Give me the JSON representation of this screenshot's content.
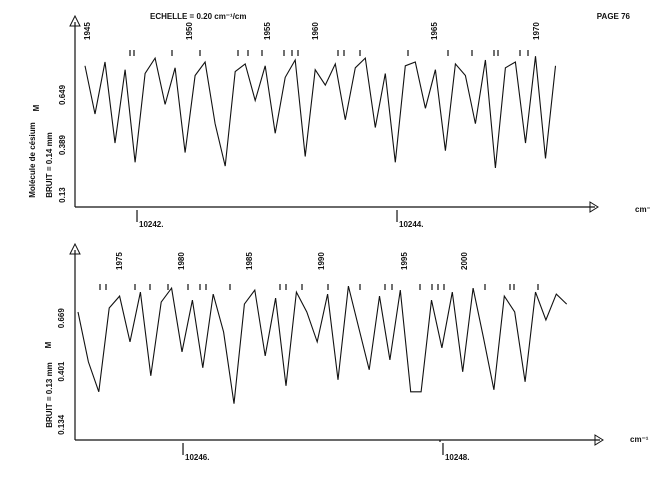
{
  "page": "PAGE 76",
  "chart_data": [
    {
      "type": "line",
      "title": "ECHELLE = 0.20 cm⁻¹/cm",
      "x_unit": "cm⁻¹",
      "molecule_label": "Molécule de césium",
      "noise_label": "BRUIT = 0.14 mm",
      "symbol": "M",
      "color": "#111111",
      "xlim": [
        10241.523,
        10245.523
      ],
      "xticks": [
        {
          "value": 10242,
          "label": "10242."
        },
        {
          "value": 10244,
          "label": "10244."
        }
      ],
      "ylim": [
        0.068,
        0.908
      ],
      "yticks": [
        0.13,
        {
          "value": 0.389,
          "label": "0.389"
        },
        0.649
      ],
      "line_ids": [
        {
          "x": 10241.623,
          "label": "1945"
        },
        {
          "x": 10242.408,
          "label": "1950"
        },
        {
          "x": 10243.008,
          "label": "1955"
        },
        {
          "x": 10243.377,
          "label": "1960"
        },
        {
          "x": 10244.292,
          "label": "1965"
        },
        {
          "x": 10245.077,
          "label": "1970"
        }
      ],
      "x": [
        10241.6,
        10241.677,
        10241.754,
        10241.831,
        10241.908,
        10241.985,
        10242.062,
        10242.139,
        10242.216,
        10242.293,
        10242.37,
        10242.447,
        10242.524,
        10242.601,
        10242.678,
        10242.755,
        10242.832,
        10242.909,
        10242.986,
        10243.063,
        10243.14,
        10243.217,
        10243.294,
        10243.371,
        10243.448,
        10243.525,
        10243.602,
        10243.679,
        10243.756,
        10243.833,
        10243.91,
        10243.987,
        10244.064,
        10244.141,
        10244.218,
        10244.295,
        10244.372,
        10244.449,
        10244.526,
        10244.603,
        10244.68,
        10244.757,
        10244.834,
        10244.911,
        10244.988,
        10245.065,
        10245.142,
        10245.219
      ],
      "values": [
        0.8,
        0.55,
        0.82,
        0.4,
        0.78,
        0.3,
        0.76,
        0.84,
        0.6,
        0.79,
        0.35,
        0.75,
        0.82,
        0.5,
        0.28,
        0.77,
        0.81,
        0.62,
        0.8,
        0.45,
        0.74,
        0.83,
        0.33,
        0.78,
        0.7,
        0.81,
        0.52,
        0.79,
        0.84,
        0.48,
        0.76,
        0.3,
        0.8,
        0.82,
        0.58,
        0.78,
        0.36,
        0.81,
        0.75,
        0.5,
        0.83,
        0.27,
        0.79,
        0.82,
        0.4,
        0.85,
        0.32,
        0.8
      ]
    },
    {
      "type": "line",
      "x_unit": "cm⁻¹",
      "noise_label": "BRUIT = 0.13 mm",
      "symbol": "M",
      "color": "#111111",
      "xlim": [
        10245.169,
        10249.208
      ],
      "xticks": [
        {
          "value": 10246,
          "label": "10246."
        },
        {
          "value": 10248,
          "label": "10248."
        }
      ],
      "ylim": [
        0.058,
        0.961
      ],
      "yticks": [
        0.134,
        0.401,
        0.669
      ],
      "line_ids": [
        {
          "x": 10245.515,
          "label": "1975"
        },
        {
          "x": 10245.992,
          "label": "1980"
        },
        {
          "x": 10246.515,
          "label": "1985"
        },
        {
          "x": 10247.069,
          "label": "1990"
        },
        {
          "x": 10247.708,
          "label": "1995"
        },
        {
          "x": 10248.169,
          "label": "2000"
        }
      ],
      "x": [
        10245.192,
        10245.272,
        10245.352,
        10245.432,
        10245.512,
        10245.592,
        10245.672,
        10245.752,
        10245.832,
        10245.912,
        10245.992,
        10246.072,
        10246.152,
        10246.232,
        10246.312,
        10246.392,
        10246.472,
        10246.552,
        10246.632,
        10246.712,
        10246.792,
        10246.872,
        10246.952,
        10247.032,
        10247.112,
        10247.192,
        10247.272,
        10247.352,
        10247.432,
        10247.512,
        10247.592,
        10247.672,
        10247.752,
        10247.832,
        10247.912,
        10247.992,
        10248.072,
        10248.152,
        10248.232,
        10248.312,
        10248.392,
        10248.472,
        10248.552,
        10248.632,
        10248.712,
        10248.792,
        10248.872,
        10248.952
      ],
      "values": [
        0.7,
        0.45,
        0.3,
        0.72,
        0.78,
        0.55,
        0.8,
        0.38,
        0.75,
        0.82,
        0.5,
        0.76,
        0.42,
        0.79,
        0.6,
        0.24,
        0.74,
        0.81,
        0.48,
        0.77,
        0.33,
        0.8,
        0.7,
        0.55,
        0.79,
        0.36,
        0.83,
        0.62,
        0.41,
        0.78,
        0.46,
        0.81,
        0.3,
        0.3,
        0.76,
        0.52,
        0.8,
        0.4,
        0.82,
        0.57,
        0.31,
        0.78,
        0.7,
        0.35,
        0.8,
        0.66,
        0.79,
        0.74
      ]
    }
  ]
}
